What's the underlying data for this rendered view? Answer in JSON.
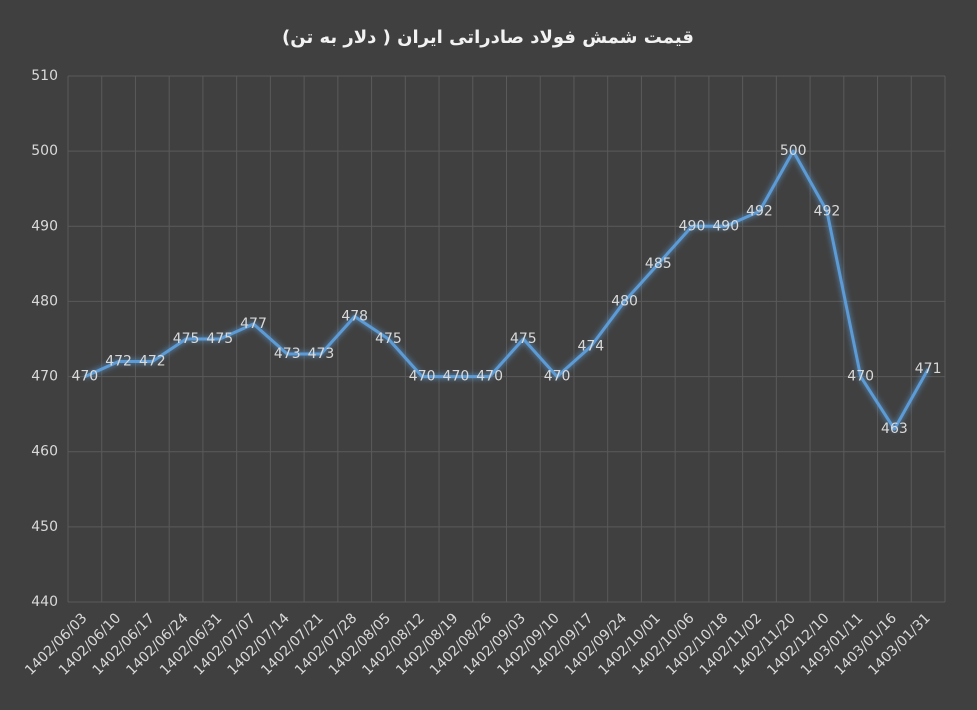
{
  "chart_data": {
    "type": "line",
    "title": "قیمت شمش فولاد صادراتی ایران ( دلار به تن)",
    "categories": [
      "1402/06/03",
      "1402/06/10",
      "1402/06/17",
      "1402/06/24",
      "1402/06/31",
      "1402/07/07",
      "1402/07/14",
      "1402/07/21",
      "1402/07/28",
      "1402/08/05",
      "1402/08/12",
      "1402/08/19",
      "1402/08/26",
      "1402/09/03",
      "1402/09/10",
      "1402/09/17",
      "1402/09/24",
      "1402/10/01",
      "1402/10/06",
      "1402/10/18",
      "1402/11/02",
      "1402/11/20",
      "1402/12/10",
      "1403/01/11",
      "1403/01/16",
      "1403/01/31"
    ],
    "values": [
      470,
      472,
      472,
      475,
      475,
      477,
      473,
      473,
      478,
      475,
      470,
      470,
      470,
      475,
      470,
      474,
      480,
      485,
      490,
      490,
      492,
      500,
      492,
      470,
      463,
      471
    ],
    "color": "#5b9bd5",
    "ylim": [
      440,
      510
    ],
    "yticks": [
      440,
      450,
      460,
      470,
      480,
      490,
      500,
      510
    ],
    "grid": true
  }
}
